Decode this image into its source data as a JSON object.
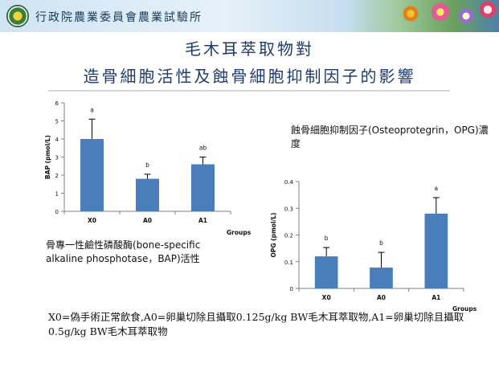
{
  "header": {
    "org_name": "行政院農業委員會農業試驗所"
  },
  "slide": {
    "title_line1": "毛木耳萃取物對",
    "title_line2": "造骨細胞活性及蝕骨細胞抑制因子的影響"
  },
  "notes": {
    "bap": "骨專一性鹼性磷酸酶(bone-specific alkaline phosphotase，BAP)活性",
    "opg": "蝕骨細胞抑制因子(Osteoprotegrin，OPG)濃度"
  },
  "footnote": "X0=偽手術正常飲食,A0=卵巢切除且攝取0.125g/kg BW毛木耳萃取物,A1=卵巢切除且攝取0.5g/kg BW毛木耳萃取物",
  "colors": {
    "bar": "#4a7ebb",
    "axis": "#808080",
    "title": "#1f3a6e"
  },
  "chart_data": [
    {
      "type": "bar",
      "categories": [
        "X0",
        "A0",
        "A1"
      ],
      "values": [
        4.0,
        1.8,
        2.6
      ],
      "errors": [
        1.1,
        0.25,
        0.4
      ],
      "sig_labels": [
        "a",
        "b",
        "ab"
      ],
      "ylabel": "BAP (pmol/L)",
      "xlabel": "Groups",
      "ylim": [
        0,
        6
      ],
      "yticks": [
        "0",
        "1",
        "2",
        "3",
        "4",
        "5",
        "6"
      ],
      "grid": false
    },
    {
      "type": "bar",
      "categories": [
        "X0",
        "A0",
        "A1"
      ],
      "values": [
        0.12,
        0.078,
        0.28
      ],
      "errors": [
        0.033,
        0.057,
        0.06
      ],
      "sig_labels": [
        "b",
        "b",
        "a"
      ],
      "ylabel": "OPG (pmol/L)",
      "xlabel": "Groups",
      "ylim": [
        0,
        0.4
      ],
      "yticks": [
        "0",
        "0.1",
        "0.2",
        "0.3",
        "0.4"
      ],
      "grid": false
    }
  ]
}
